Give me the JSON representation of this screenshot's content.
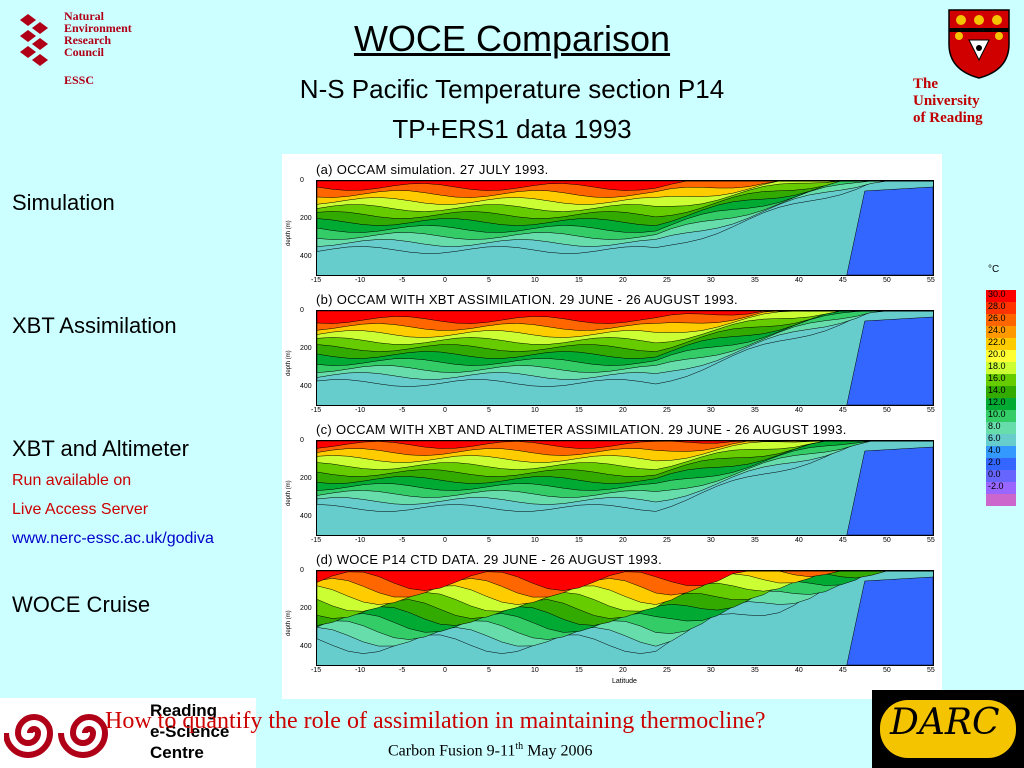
{
  "header": {
    "title": "WOCE Comparison",
    "subtitle1": "N-S Pacific Temperature section P14",
    "subtitle2": "TP+ERS1 data 1993"
  },
  "logos": {
    "nerc": {
      "lines": [
        "Natural",
        "Environment",
        "Research",
        "Council"
      ],
      "tag": "ESSC"
    },
    "reading": {
      "lines": [
        "The",
        "University",
        "of Reading"
      ]
    },
    "rec": {
      "lines": [
        "Reading",
        "e-Science",
        "Centre"
      ]
    },
    "darc": {
      "text": "DARC"
    }
  },
  "left_labels": {
    "simulation": "Simulation",
    "xbt_assim": "XBT Assimilation",
    "xbt_alt": "XBT and Altimeter",
    "run_available": "Run available on",
    "las": "Live Access Server",
    "url": "www.nerc-essc.ac.uk/godiva",
    "woce_cruise": "WOCE Cruise"
  },
  "panels": [
    {
      "title": "(a) OCCAM simulation. 27 JULY 1993."
    },
    {
      "title": "(b) OCCAM WITH XBT ASSIMILATION.  29 JUNE - 26 AUGUST 1993."
    },
    {
      "title": "(c) OCCAM WITH XBT AND ALTIMETER ASSIMILATION.  29 JUNE - 26 AUGUST 1993."
    },
    {
      "title": "(d) WOCE P14 CTD DATA. 29 JUNE - 26 AUGUST 1993."
    }
  ],
  "axes": {
    "x_ticks": [
      "-15",
      "-10",
      "-5",
      "0",
      "5",
      "10",
      "15",
      "20",
      "25",
      "30",
      "35",
      "40",
      "45",
      "50",
      "55"
    ],
    "y_ticks": [
      "0",
      "200",
      "400"
    ],
    "y_label": "depth (m)",
    "x_label": "Latitude"
  },
  "colorbar": {
    "unit": "°C",
    "labels": [
      "30.0",
      "28.0",
      "26.0",
      "24.0",
      "22.0",
      "20.0",
      "18.0",
      "16.0",
      "14.0",
      "12.0",
      "10.0",
      "8.0",
      "6.0",
      "4.0",
      "2.0",
      "0.0",
      "-2.0"
    ],
    "colors": [
      "#ff0000",
      "#ff3300",
      "#ff6600",
      "#ff9900",
      "#ffcc00",
      "#ffff33",
      "#ccff33",
      "#66cc00",
      "#33aa00",
      "#00aa33",
      "#33cc66",
      "#66ddaa",
      "#66cccc",
      "#3399ff",
      "#3366ff",
      "#6666ff",
      "#9966ff",
      "#cc66cc"
    ]
  },
  "footer": {
    "question": "How to quantify the role of assimilation in maintaining thermocline?",
    "event_prefix": "Carbon Fusion 9-11",
    "event_sup": "th",
    "event_suffix": " May 2006"
  }
}
